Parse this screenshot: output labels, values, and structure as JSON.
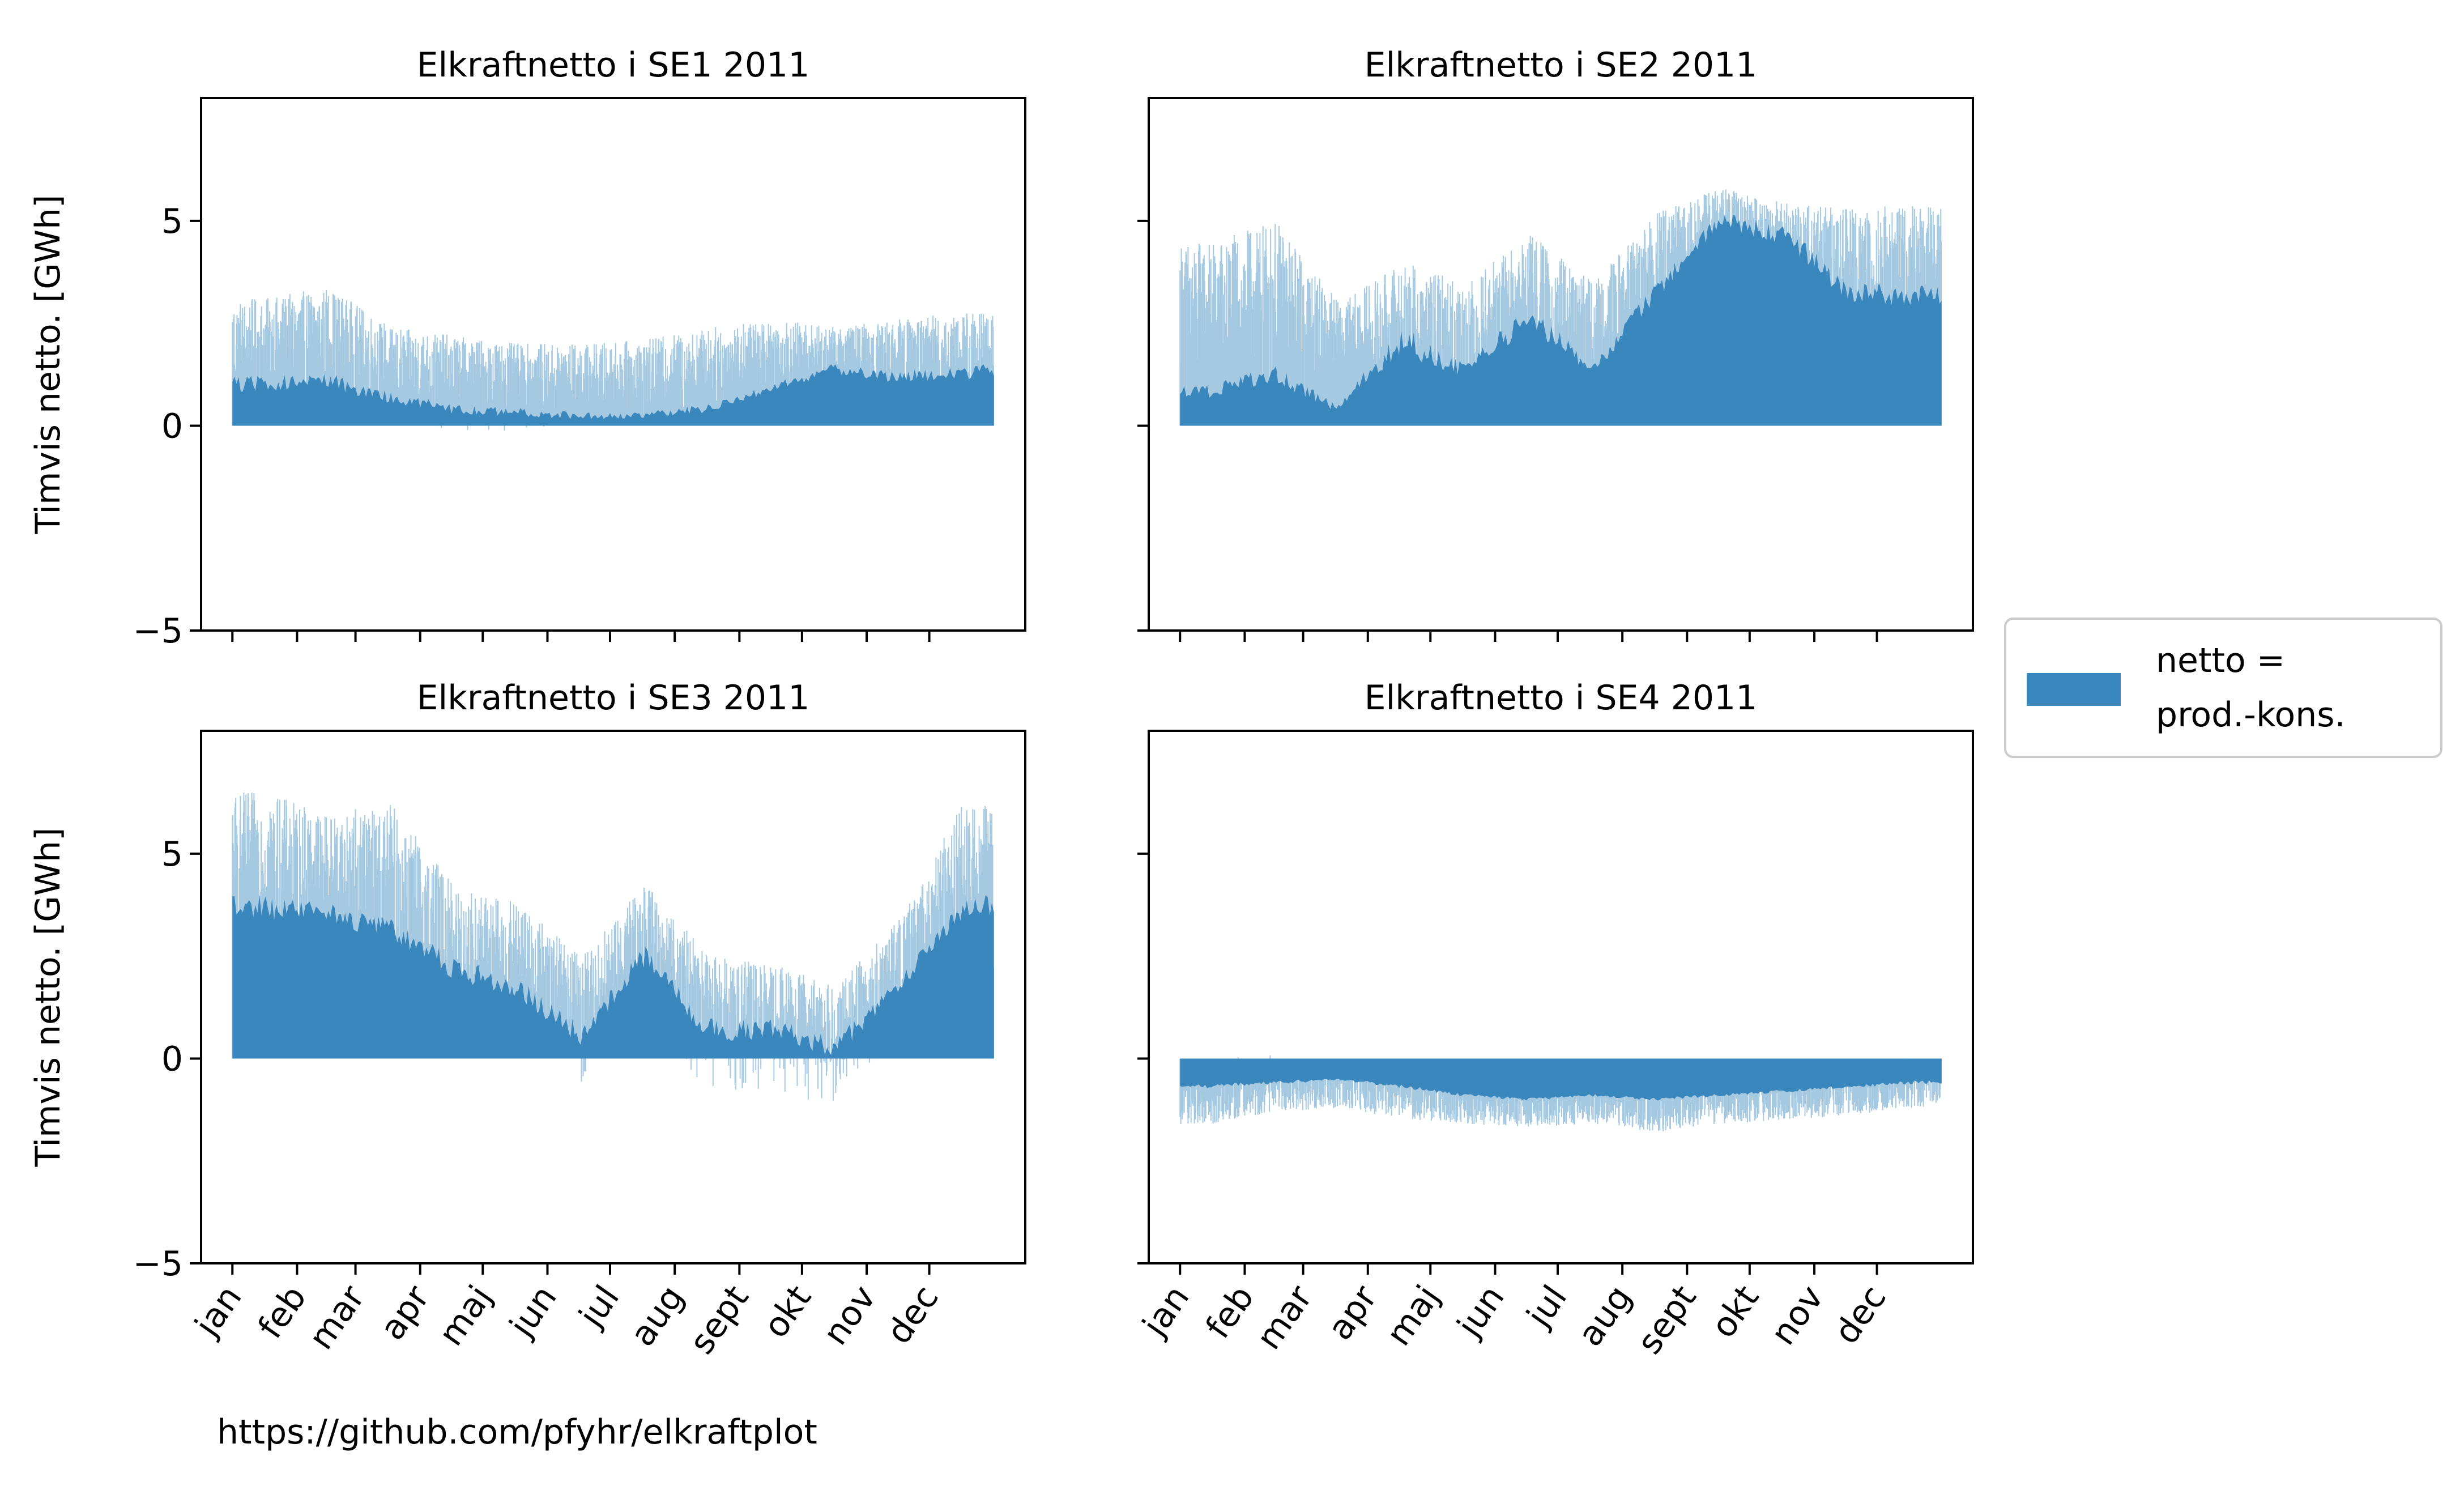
{
  "figure": {
    "credit": "https://github.com/pfyhr/elkraftplot"
  },
  "legend": {
    "label_line1": "netto =",
    "label_line2": "prod.-kons.",
    "color": "#3a87be",
    "location": "right-center"
  },
  "chart_data": [
    {
      "type": "area",
      "title": "Elkraftnetto i SE1 2011",
      "ylabel": "Timvis netto. [GWh]",
      "ylim": [
        -5,
        8
      ],
      "yticks": [
        -5,
        0,
        5
      ],
      "xlim": [
        -15,
        380
      ],
      "months": [
        "jan",
        "feb",
        "mar",
        "apr",
        "maj",
        "jun",
        "jul",
        "aug",
        "sept",
        "okt",
        "nov",
        "dec"
      ],
      "month_start_day": [
        0,
        31,
        59,
        90,
        120,
        151,
        181,
        212,
        243,
        273,
        304,
        334
      ],
      "series_name": "netto = prod.-kons.",
      "monthly_base": [
        1.2,
        1.3,
        0.8,
        0.5,
        0.4,
        0.3,
        0.3,
        0.5,
        1.0,
        1.5,
        1.3,
        1.5
      ],
      "monthly_peak": [
        3.1,
        3.4,
        2.4,
        2.2,
        2.0,
        2.0,
        2.1,
        2.4,
        2.6,
        2.4,
        2.6,
        2.8
      ],
      "monthly_low": [
        0.0,
        0.0,
        0.0,
        -0.2,
        -0.1,
        -0.1,
        0.0,
        0.0,
        0.5,
        0.8,
        0.5,
        0.3
      ],
      "show_x_labels": false,
      "show_y_labels": true
    },
    {
      "type": "area",
      "title": "Elkraftnetto i SE2 2011",
      "ylabel": "",
      "ylim": [
        -5,
        8
      ],
      "yticks": [
        -5,
        0,
        5
      ],
      "xlim": [
        -15,
        380
      ],
      "months": [
        "jan",
        "feb",
        "mar",
        "apr",
        "maj",
        "jun",
        "jul",
        "aug",
        "sept",
        "okt",
        "nov",
        "dec"
      ],
      "month_start_day": [
        0,
        31,
        59,
        90,
        120,
        151,
        181,
        212,
        243,
        273,
        304,
        334
      ],
      "series_name": "netto = prod.-kons.",
      "monthly_base": [
        1.0,
        1.5,
        0.5,
        2.5,
        1.5,
        3.0,
        1.5,
        3.5,
        5.2,
        5.0,
        3.5,
        3.5
      ],
      "monthly_peak": [
        4.5,
        5.0,
        3.0,
        4.0,
        3.5,
        4.7,
        3.5,
        5.2,
        5.8,
        5.5,
        5.3,
        5.4
      ],
      "monthly_low": [
        0.0,
        0.0,
        0.0,
        0.0,
        0.0,
        1.0,
        0.5,
        2.0,
        4.0,
        3.0,
        2.0,
        1.5
      ],
      "show_x_labels": true,
      "show_y_labels": false
    },
    {
      "type": "area",
      "title": "Elkraftnetto i SE3 2011",
      "ylabel": "Timvis netto. [GWh]",
      "ylim": [
        -5,
        8
      ],
      "yticks": [
        -5,
        0,
        5
      ],
      "xlim": [
        -15,
        380
      ],
      "months": [
        "jan",
        "feb",
        "mar",
        "apr",
        "maj",
        "jun",
        "jul",
        "aug",
        "sept",
        "okt",
        "nov",
        "dec"
      ],
      "month_start_day": [
        0,
        31,
        59,
        90,
        120,
        151,
        181,
        212,
        243,
        273,
        304,
        334
      ],
      "series_name": "netto = prod.-kons.",
      "monthly_base": [
        4.0,
        3.8,
        3.5,
        2.5,
        2.0,
        0.8,
        2.8,
        1.0,
        1.0,
        0.5,
        2.0,
        4.0
      ],
      "monthly_peak": [
        6.5,
        6.0,
        6.2,
        4.2,
        3.8,
        2.5,
        4.3,
        2.5,
        2.3,
        1.8,
        3.4,
        6.2
      ],
      "monthly_low": [
        2.0,
        2.0,
        1.5,
        0.5,
        0.2,
        -0.8,
        1.0,
        -0.9,
        -1.0,
        -1.2,
        0.5,
        2.0
      ],
      "show_x_labels": true,
      "show_y_labels": true
    },
    {
      "type": "area",
      "title": "Elkraftnetto i SE4 2011",
      "ylabel": "",
      "ylim": [
        -5,
        8
      ],
      "yticks": [
        -5,
        0,
        5
      ],
      "xlim": [
        -15,
        380
      ],
      "months": [
        "jan",
        "feb",
        "mar",
        "apr",
        "maj",
        "jun",
        "jul",
        "aug",
        "sept",
        "okt",
        "nov",
        "dec"
      ],
      "month_start_day": [
        0,
        31,
        59,
        90,
        120,
        151,
        181,
        212,
        243,
        273,
        304,
        334
      ],
      "series_name": "netto = prod.-kons.",
      "monthly_base": [
        -0.8,
        -0.7,
        -0.6,
        -0.8,
        -1.0,
        -1.1,
        -1.0,
        -1.1,
        -1.0,
        -0.9,
        -0.8,
        -0.7
      ],
      "monthly_peak": [
        -1.6,
        -1.3,
        -1.2,
        -1.5,
        -1.6,
        -1.7,
        -1.6,
        -1.8,
        -1.6,
        -1.5,
        -1.4,
        -1.2
      ],
      "monthly_low": [
        0.0,
        0.1,
        0.0,
        0.0,
        -0.3,
        -0.4,
        -0.3,
        -0.4,
        -0.3,
        -0.2,
        -0.1,
        0.1
      ],
      "show_x_labels": true,
      "show_y_labels": false
    }
  ]
}
